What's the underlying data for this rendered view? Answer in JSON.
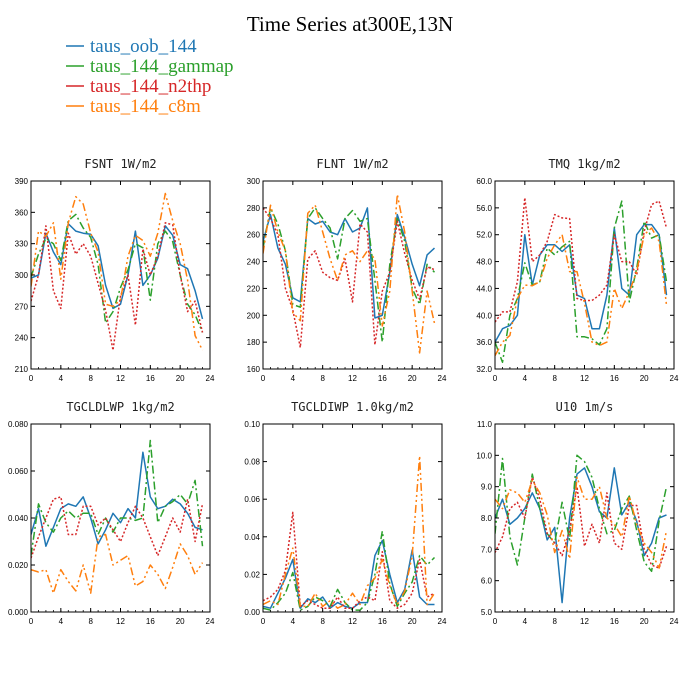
{
  "figure": {
    "title": "Time Series at300E,13N"
  },
  "legend": [
    {
      "name": "taus_oob_144",
      "color": "#1f77b4",
      "dash": ""
    },
    {
      "name": "taus_144_gammap",
      "color": "#2ca02c",
      "dash": "8,3,2,3"
    },
    {
      "name": "taus_144_n2thp",
      "color": "#d62728",
      "dash": "2,2"
    },
    {
      "name": "taus_144_c8m",
      "color": "#ff7f0e",
      "dash": "8,3,2,3,2,3"
    }
  ],
  "chart_data": [
    {
      "type": "line",
      "title": "FSNT   1W/m2",
      "x": [
        0,
        1,
        2,
        3,
        4,
        5,
        6,
        7,
        8,
        9,
        10,
        11,
        12,
        13,
        14,
        15,
        16,
        17,
        18,
        19,
        20,
        21,
        22,
        23
      ],
      "xticks": [
        "0",
        "4",
        "8",
        "12",
        "16",
        "20",
        "24"
      ],
      "xlim": [
        0,
        24
      ],
      "ylim": [
        210,
        390
      ],
      "yticks": [
        "210",
        "240",
        "270",
        "300",
        "330",
        "360",
        "390"
      ],
      "series": [
        {
          "name": "taus_oob_144",
          "values": [
            297,
            300,
            340,
            322,
            310,
            349,
            342,
            340,
            339,
            328,
            290,
            268,
            272,
            300,
            342,
            290,
            300,
            316,
            347,
            338,
            310,
            306,
            285,
            258
          ]
        },
        {
          "name": "taus_144_gammap",
          "values": [
            298,
            320,
            335,
            330,
            314,
            352,
            358,
            345,
            336,
            310,
            254,
            265,
            288,
            305,
            330,
            326,
            276,
            330,
            342,
            332,
            300,
            272,
            262,
            245
          ]
        },
        {
          "name": "taus_144_n2thp",
          "values": [
            275,
            300,
            347,
            285,
            268,
            340,
            320,
            330,
            318,
            292,
            266,
            228,
            280,
            300,
            252,
            325,
            300,
            318,
            350,
            348,
            300,
            265,
            275,
            245
          ]
        },
        {
          "name": "taus_144_c8m",
          "values": [
            289,
            342,
            337,
            350,
            296,
            350,
            375,
            368,
            340,
            322,
            272,
            270,
            276,
            318,
            338,
            333,
            318,
            340,
            378,
            352,
            330,
            295,
            242,
            228
          ]
        }
      ]
    },
    {
      "type": "line",
      "title": "FLNT   1W/m2",
      "x": [
        0,
        1,
        2,
        3,
        4,
        5,
        6,
        7,
        8,
        9,
        10,
        11,
        12,
        13,
        14,
        15,
        16,
        17,
        18,
        19,
        20,
        21,
        22,
        23
      ],
      "xticks": [
        "0",
        "4",
        "8",
        "12",
        "16",
        "20",
        "24"
      ],
      "xlim": [
        0,
        24
      ],
      "ylim": [
        160,
        300
      ],
      "yticks": [
        "160",
        "180",
        "200",
        "220",
        "240",
        "260",
        "280",
        "300"
      ],
      "series": [
        {
          "name": "taus_oob_144",
          "values": [
            255,
            275,
            250,
            238,
            213,
            210,
            272,
            268,
            270,
            262,
            260,
            272,
            262,
            265,
            280,
            198,
            200,
            232,
            275,
            258,
            238,
            222,
            245,
            250
          ]
        },
        {
          "name": "taus_144_gammap",
          "values": [
            250,
            280,
            268,
            248,
            208,
            206,
            272,
            280,
            272,
            265,
            242,
            272,
            278,
            270,
            272,
            226,
            180,
            238,
            272,
            255,
            220,
            208,
            238,
            232
          ]
        },
        {
          "name": "taus_144_n2thp",
          "values": [
            280,
            272,
            260,
            220,
            204,
            176,
            242,
            248,
            232,
            228,
            226,
            242,
            210,
            268,
            262,
            178,
            218,
            232,
            270,
            246,
            226,
            212,
            236,
            234
          ]
        },
        {
          "name": "taus_144_c8m",
          "values": [
            246,
            282,
            262,
            248,
            202,
            196,
            276,
            282,
            262,
            242,
            226,
            245,
            248,
            240,
            248,
            242,
            192,
            218,
            290,
            262,
            218,
            172,
            218,
            194
          ]
        }
      ]
    },
    {
      "type": "line",
      "title": "TMQ   1kg/m2",
      "x": [
        0,
        1,
        2,
        3,
        4,
        5,
        6,
        7,
        8,
        9,
        10,
        11,
        12,
        13,
        14,
        15,
        16,
        17,
        18,
        19,
        20,
        21,
        22,
        23
      ],
      "xticks": [
        "0",
        "4",
        "8",
        "12",
        "16",
        "20",
        "24"
      ],
      "xlim": [
        0,
        24
      ],
      "ylim": [
        32,
        60
      ],
      "yticks": [
        "32.0",
        "36.0",
        "40.0",
        "44.0",
        "48.0",
        "52.0",
        "56.0",
        "60.0"
      ],
      "series": [
        {
          "name": "taus_oob_144",
          "values": [
            36,
            38,
            38.5,
            40,
            52,
            44.5,
            49,
            50.5,
            50.5,
            49.5,
            50.5,
            43,
            42.5,
            38,
            38,
            43,
            53,
            44,
            43,
            52,
            53.5,
            53.5,
            52,
            43
          ]
        },
        {
          "name": "taus_144_gammap",
          "values": [
            36,
            33,
            40,
            42.5,
            47.8,
            44.5,
            45,
            50,
            49,
            50.2,
            51,
            36.8,
            36.8,
            36.5,
            35.6,
            38,
            53,
            57,
            42,
            47,
            54,
            51.5,
            52,
            45
          ]
        },
        {
          "name": "taus_144_n2thp",
          "values": [
            39,
            40.5,
            40.5,
            45,
            57.5,
            48,
            49,
            51,
            55,
            54.5,
            54.4,
            42.5,
            42.2,
            42.2,
            43,
            44.5,
            52,
            48,
            48,
            46,
            52.5,
            56.5,
            57,
            53
          ]
        },
        {
          "name": "taus_144_c8m",
          "values": [
            34,
            36,
            37,
            42.5,
            44.5,
            44.4,
            45,
            48.5,
            50.5,
            52,
            46.5,
            46.5,
            41.8,
            36,
            35.5,
            36,
            44,
            41,
            43.5,
            46.5,
            52,
            53,
            51,
            41.5
          ]
        }
      ]
    },
    {
      "type": "line",
      "title": "TGCLDLWP   1kg/m2",
      "x": [
        0,
        1,
        2,
        3,
        4,
        5,
        6,
        7,
        8,
        9,
        10,
        11,
        12,
        13,
        14,
        15,
        16,
        17,
        18,
        19,
        20,
        21,
        22,
        23
      ],
      "xticks": [
        "0",
        "4",
        "8",
        "12",
        "16",
        "20",
        "24"
      ],
      "xlim": [
        0,
        24
      ],
      "ylim": [
        0,
        0.08
      ],
      "yticks": [
        "0.000",
        "0.020",
        "0.040",
        "0.060",
        "0.080"
      ],
      "series": [
        {
          "name": "taus_oob_144",
          "values": [
            0.033,
            0.044,
            0.028,
            0.036,
            0.044,
            0.046,
            0.045,
            0.049,
            0.04,
            0.029,
            0.035,
            0.042,
            0.038,
            0.044,
            0.04,
            0.068,
            0.049,
            0.044,
            0.045,
            0.048,
            0.046,
            0.042,
            0.036,
            0.035
          ]
        },
        {
          "name": "taus_144_gammap",
          "values": [
            0.024,
            0.046,
            0.038,
            0.034,
            0.04,
            0.043,
            0.04,
            0.042,
            0.042,
            0.033,
            0.04,
            0.034,
            0.04,
            0.04,
            0.039,
            0.04,
            0.073,
            0.038,
            0.045,
            0.047,
            0.05,
            0.046,
            0.056,
            0.028
          ]
        },
        {
          "name": "taus_144_n2thp",
          "values": [
            0.023,
            0.032,
            0.04,
            0.048,
            0.049,
            0.033,
            0.033,
            0.045,
            0.045,
            0.037,
            0.04,
            0.035,
            0.03,
            0.038,
            0.045,
            0.04,
            0.032,
            0.024,
            0.032,
            0.04,
            0.034,
            0.048,
            0.03,
            0.046
          ]
        },
        {
          "name": "taus_144_c8m",
          "values": [
            0.018,
            0.017,
            0.018,
            0.008,
            0.018,
            0.013,
            0.009,
            0.02,
            0.008,
            0.032,
            0.033,
            0.02,
            0.022,
            0.024,
            0.011,
            0.013,
            0.02,
            0.016,
            0.01,
            0.019,
            0.029,
            0.024,
            0.016,
            0.021
          ]
        }
      ]
    },
    {
      "type": "line",
      "title": "TGCLDIWP   1.0kg/m2",
      "x": [
        0,
        1,
        2,
        3,
        4,
        5,
        6,
        7,
        8,
        9,
        10,
        11,
        12,
        13,
        14,
        15,
        16,
        17,
        18,
        19,
        20,
        21,
        22,
        23
      ],
      "xticks": [
        "0",
        "4",
        "8",
        "12",
        "16",
        "20",
        "24"
      ],
      "xlim": [
        0,
        24
      ],
      "ylim": [
        0,
        0.1
      ],
      "yticks": [
        "0.00",
        "0.02",
        "0.04",
        "0.06",
        "0.08",
        "0.10"
      ],
      "series": [
        {
          "name": "taus_oob_144",
          "values": [
            0.003,
            0.002,
            0.01,
            0.018,
            0.028,
            0.002,
            0.007,
            0.005,
            0.008,
            0.002,
            0.005,
            0.003,
            0.002,
            0.005,
            0.005,
            0.03,
            0.038,
            0.02,
            0.005,
            0.012,
            0.033,
            0.008,
            0.004,
            0.004
          ]
        },
        {
          "name": "taus_144_gammap",
          "values": [
            0.002,
            0.001,
            0.005,
            0.01,
            0.021,
            0.001,
            0.003,
            0.008,
            0.006,
            0.003,
            0.012,
            0.005,
            0.001,
            0.001,
            0.005,
            0.02,
            0.043,
            0.015,
            0.003,
            0.01,
            0.016,
            0.03,
            0.025,
            0.029
          ]
        },
        {
          "name": "taus_144_n2thp",
          "values": [
            0.006,
            0.008,
            0.012,
            0.022,
            0.053,
            0.003,
            0.006,
            0.004,
            0.002,
            0.002,
            0.008,
            0.002,
            0.002,
            0.006,
            0.008,
            0.006,
            0.032,
            0.006,
            0.002,
            0.004,
            0.01,
            0.028,
            0.008,
            0.01
          ]
        },
        {
          "name": "taus_144_c8m",
          "values": [
            0.004,
            0.006,
            0.004,
            0.02,
            0.034,
            0.003,
            0.003,
            0.01,
            0.003,
            0.006,
            0.002,
            0.004,
            0.01,
            0.004,
            0.014,
            0.018,
            0.028,
            0.014,
            0.004,
            0.011,
            0.03,
            0.083,
            0.004,
            0.01
          ]
        }
      ]
    },
    {
      "type": "line",
      "title": "U10   1m/s",
      "x": [
        0,
        1,
        2,
        3,
        4,
        5,
        6,
        7,
        8,
        9,
        10,
        11,
        12,
        13,
        14,
        15,
        16,
        17,
        18,
        19,
        20,
        21,
        22,
        23
      ],
      "xticks": [
        "0",
        "4",
        "8",
        "12",
        "16",
        "20",
        "24"
      ],
      "xlim": [
        0,
        24
      ],
      "ylim": [
        5,
        11
      ],
      "yticks": [
        "5.0",
        "6.0",
        "7.0",
        "8.0",
        "9.0",
        "10.0",
        "11.0"
      ],
      "series": [
        {
          "name": "taus_oob_144",
          "values": [
            8.0,
            8.6,
            7.8,
            8.0,
            8.3,
            8.8,
            8.3,
            7.3,
            7.7,
            5.3,
            8.0,
            9.4,
            9.6,
            9.0,
            8.2,
            8.0,
            9.6,
            8.1,
            8.5,
            7.9,
            6.8,
            7.2,
            8.0,
            8.1
          ]
        },
        {
          "name": "taus_144_gammap",
          "values": [
            7.5,
            9.9,
            7.4,
            6.5,
            8.0,
            9.4,
            8.3,
            7.5,
            7.2,
            8.5,
            7.3,
            10.0,
            9.8,
            9.3,
            8.3,
            7.5,
            7.6,
            8.3,
            8.7,
            7.6,
            6.6,
            6.3,
            7.9,
            9.0
          ]
        },
        {
          "name": "taus_144_n2thp",
          "values": [
            6.9,
            7.4,
            8.3,
            8.5,
            8.0,
            9.3,
            8.6,
            7.5,
            7.2,
            6.8,
            7.6,
            9.0,
            7.1,
            7.8,
            7.2,
            8.8,
            7.2,
            7.0,
            8.4,
            8.4,
            7.0,
            6.5,
            6.4,
            7.1
          ]
        },
        {
          "name": "taus_144_c8m",
          "values": [
            8.6,
            8.3,
            8.9,
            8.8,
            8.5,
            9.2,
            8.8,
            8.1,
            6.9,
            7.6,
            6.7,
            9.3,
            8.6,
            8.6,
            9.0,
            8.0,
            7.8,
            7.4,
            8.7,
            7.8,
            7.2,
            6.9,
            6.4,
            7.6
          ]
        }
      ]
    }
  ]
}
